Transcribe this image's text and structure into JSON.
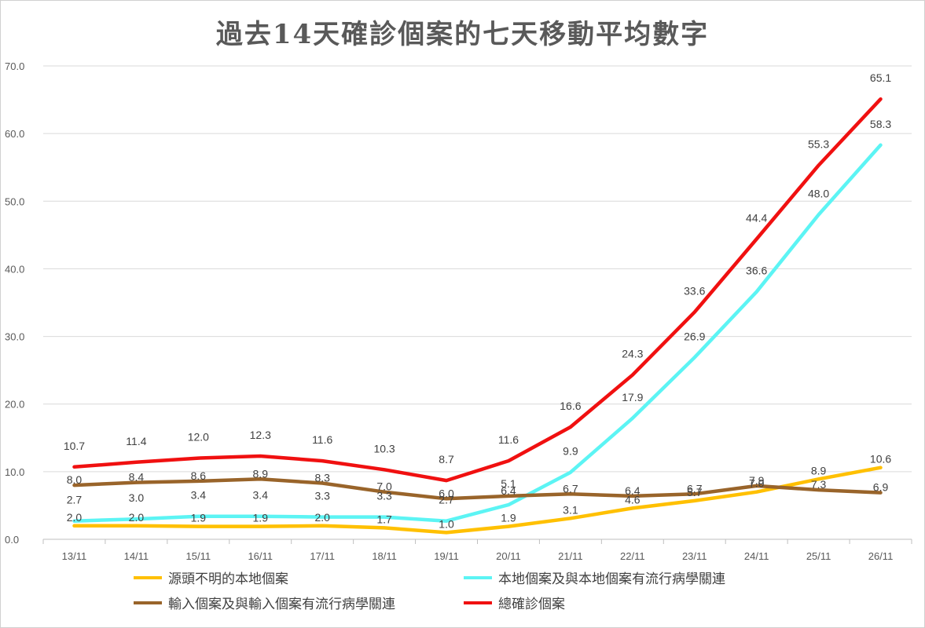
{
  "chart_data": {
    "type": "line",
    "title": "過去14天確診個案的七天移動平均數字",
    "categories": [
      "13/11",
      "14/11",
      "15/11",
      "16/11",
      "17/11",
      "18/11",
      "19/11",
      "20/11",
      "21/11",
      "22/11",
      "23/11",
      "24/11",
      "25/11",
      "26/11"
    ],
    "ylim": [
      0,
      70
    ],
    "yticks": [
      "0.0",
      "10.0",
      "20.0",
      "30.0",
      "40.0",
      "50.0",
      "60.0",
      "70.0"
    ],
    "grid": true,
    "legend_position": "bottom",
    "series": [
      {
        "name": "源頭不明的本地個案",
        "color": "#FFC000",
        "values": [
          2.0,
          2.0,
          1.9,
          1.9,
          2.0,
          1.7,
          1.0,
          1.9,
          3.1,
          4.6,
          5.7,
          7.0,
          8.9,
          10.6
        ],
        "labels": [
          "2.0",
          "2.0",
          "1.9",
          "1.9",
          "2.0",
          "1.7",
          "1.0",
          "1.9",
          "3.1",
          "4.6",
          "5.7",
          "7.0",
          "8.9",
          "10.6"
        ]
      },
      {
        "name": "本地個案及與本地個案有流行病學關連",
        "color": "#5CF4F4",
        "values": [
          2.7,
          3.0,
          3.4,
          3.4,
          3.3,
          3.3,
          2.7,
          5.1,
          9.9,
          17.9,
          26.9,
          36.6,
          48.0,
          58.3
        ],
        "labels": [
          "2.7",
          "3.0",
          "3.4",
          "3.4",
          "3.3",
          "3.3",
          "2.7",
          "5.1",
          "9.9",
          "17.9",
          "26.9",
          "36.6",
          "48.0",
          "58.3"
        ]
      },
      {
        "name": "輸入個案及與輸入個案有流行病學關連",
        "color": "#99642A",
        "values": [
          8.0,
          8.4,
          8.6,
          8.9,
          8.3,
          7.0,
          6.0,
          6.4,
          6.7,
          6.4,
          6.7,
          7.9,
          7.3,
          6.9
        ],
        "labels": [
          "8.0",
          "8.4",
          "8.6",
          "8.9",
          "8.3",
          "7.0",
          "6.0",
          "6.4",
          "6.7",
          "6.4",
          "6.7",
          "7.9",
          "7.3",
          "6.9"
        ]
      },
      {
        "name": "總確診個案",
        "color": "#F01010",
        "values": [
          10.7,
          11.4,
          12.0,
          12.3,
          11.6,
          10.3,
          8.7,
          11.6,
          16.6,
          24.3,
          33.6,
          44.4,
          55.3,
          65.1
        ],
        "labels": [
          "10.7",
          "11.4",
          "12.0",
          "12.3",
          "11.6",
          "10.3",
          "8.7",
          "11.6",
          "16.6",
          "24.3",
          "33.6",
          "44.4",
          "55.3",
          "65.1"
        ]
      }
    ]
  }
}
